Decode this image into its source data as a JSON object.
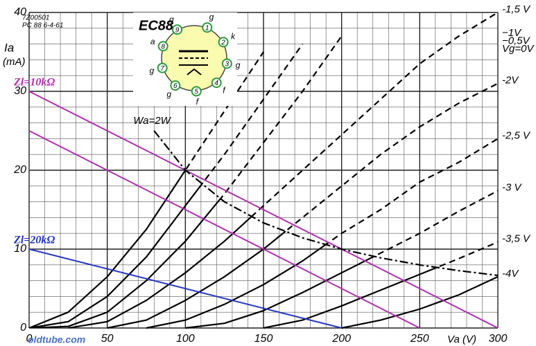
{
  "chart_data": {
    "type": "line",
    "title": "EC88",
    "code": "7Z00501",
    "reference": "PC 88  6-4-61",
    "watermark": "oldtube.com",
    "y_label": "Ia",
    "y_unit": "(mA)",
    "x_label": "Va (V)",
    "xlim": [
      0,
      300
    ],
    "ylim": [
      0,
      40
    ],
    "xticks": [
      0,
      50,
      100,
      150,
      200,
      250,
      300
    ],
    "yticks": [
      0,
      10,
      20,
      30,
      40
    ],
    "grid": true,
    "x": [
      0,
      25,
      50,
      75,
      100,
      125,
      150,
      175,
      200,
      225,
      250,
      275,
      300
    ],
    "series": [
      {
        "name": "Vg=0V",
        "color": "#000000",
        "values": [
          0,
          2,
          6.5,
          12.5,
          20,
          27.5,
          35,
          null,
          null,
          null,
          null,
          null,
          null
        ]
      },
      {
        "name": "−0,5V",
        "color": "#000000",
        "values": [
          0,
          0.8,
          4,
          9,
          15.5,
          22,
          29,
          36,
          null,
          null,
          null,
          null,
          null
        ]
      },
      {
        "name": "−1V",
        "color": "#000000",
        "values": [
          0,
          0.2,
          2,
          6,
          11,
          17,
          23.5,
          30,
          37,
          null,
          null,
          null,
          null
        ]
      },
      {
        "name": "-1,5 V",
        "color": "#000000",
        "values": [
          null,
          0,
          0.8,
          3.5,
          7,
          11,
          15.5,
          20,
          24.5,
          29,
          33.5,
          37,
          40
        ]
      },
      {
        "name": "-2V",
        "color": "#000000",
        "values": [
          null,
          null,
          0,
          1,
          3.5,
          6.5,
          10,
          14,
          18,
          22,
          25.5,
          28.5,
          31
        ]
      },
      {
        "name": "-2,5 V",
        "color": "#000000",
        "values": [
          null,
          null,
          null,
          0,
          1,
          3,
          5.5,
          8.5,
          12,
          15,
          18.5,
          21,
          24
        ]
      },
      {
        "name": "-3 V",
        "color": "#000000",
        "values": [
          null,
          null,
          null,
          null,
          0,
          0.6,
          2.2,
          4.5,
          7,
          9.5,
          12,
          14.8,
          17.4
        ]
      },
      {
        "name": "-3,5 V",
        "color": "#000000",
        "values": [
          null,
          null,
          null,
          null,
          null,
          null,
          0,
          1,
          2.8,
          4.8,
          6.8,
          8.8,
          10.9
        ]
      },
      {
        "name": "-4V",
        "color": "#000000",
        "values": [
          null,
          null,
          null,
          null,
          null,
          null,
          null,
          null,
          0,
          1,
          2.4,
          4.2,
          6.5
        ]
      }
    ],
    "load_lines": [
      {
        "name": "Zl=10kΩ",
        "color": "#b030b0",
        "x": [
          0,
          300
        ],
        "values": [
          30,
          0
        ]
      },
      {
        "color": "#b030b0",
        "x": [
          0,
          250
        ],
        "values": [
          25,
          0
        ]
      },
      {
        "name": "Zl=20kΩ",
        "color": "#2233c0",
        "x": [
          0,
          200
        ],
        "values": [
          10,
          0
        ]
      }
    ],
    "power_limit": {
      "name": "Wa=2W",
      "color": "#000000",
      "x": [
        80,
        100,
        125,
        150,
        175,
        200,
        225,
        250,
        275,
        300
      ],
      "values": [
        25,
        20,
        16,
        13.33,
        11.43,
        10,
        8.89,
        8,
        7.27,
        6.67
      ]
    },
    "pins": [
      {
        "num": "1",
        "letter": "g"
      },
      {
        "num": "2",
        "letter": "k"
      },
      {
        "num": "3",
        "letter": "g"
      },
      {
        "num": "4",
        "letter": "f"
      },
      {
        "num": "5",
        "letter": "f"
      },
      {
        "num": "6",
        "letter": "g"
      },
      {
        "num": "7",
        "letter": "g"
      },
      {
        "num": "8",
        "letter": "a"
      },
      {
        "num": "9",
        "letter": "g"
      }
    ]
  }
}
